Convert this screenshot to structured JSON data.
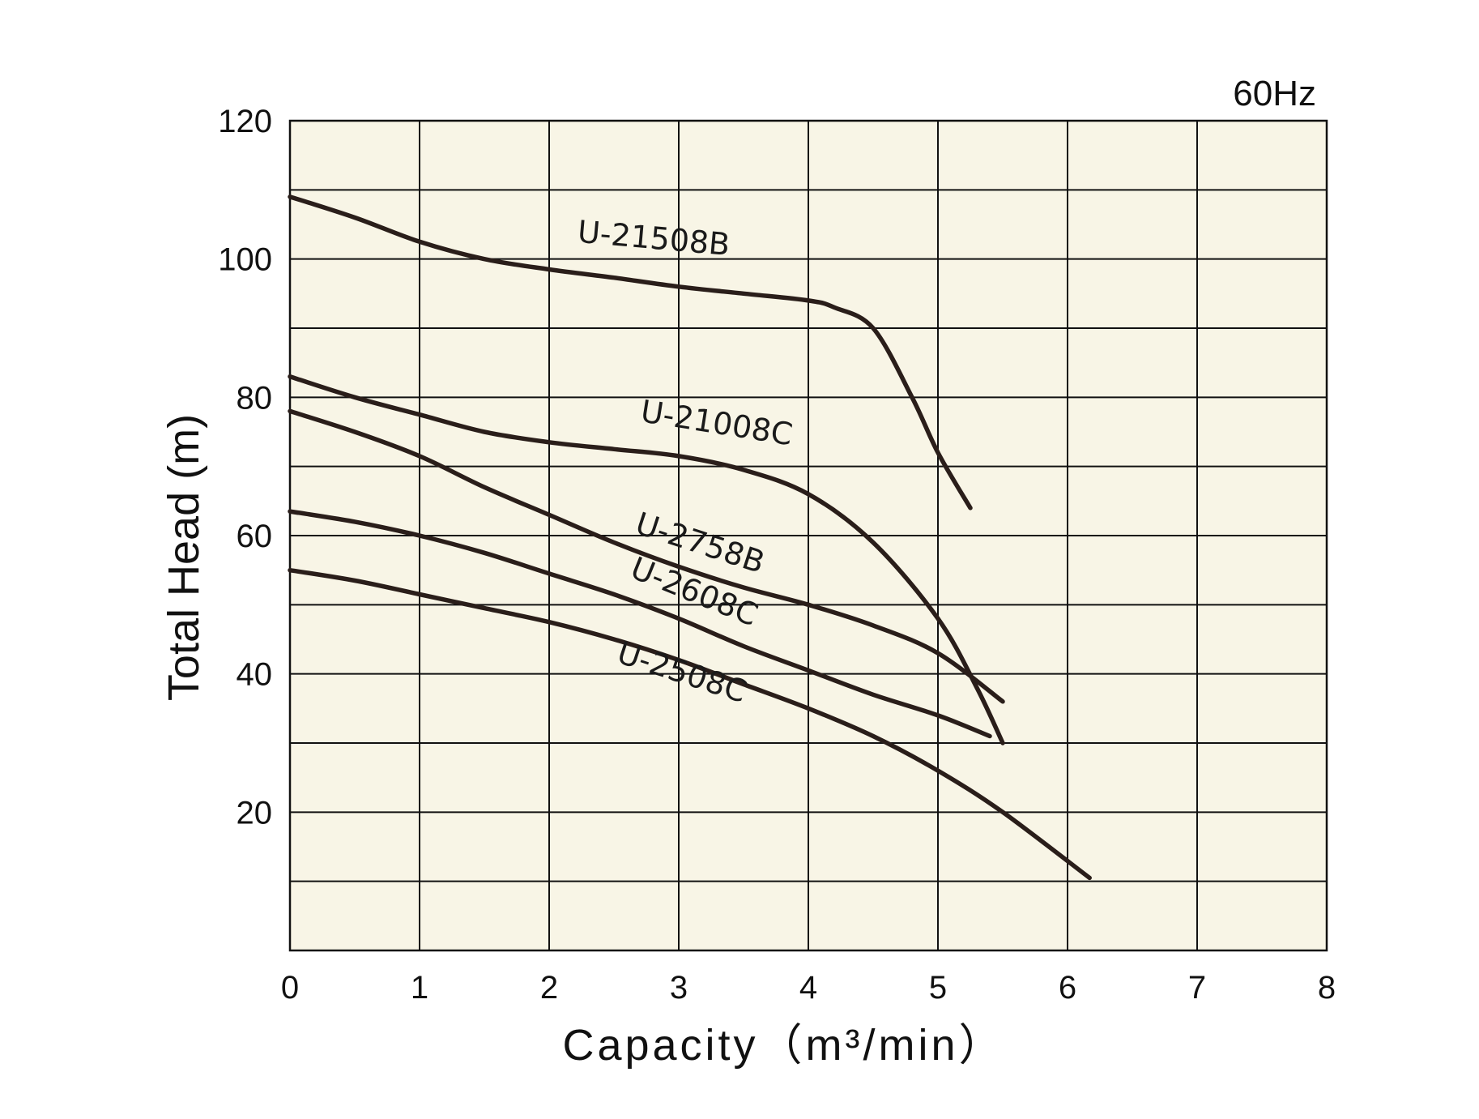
{
  "chart_data": {
    "type": "line",
    "frequency_label": "60Hz",
    "xlabel": "Capacity（m³/min）",
    "ylabel": "Total Head (m)",
    "xlim": [
      0,
      8
    ],
    "ylim": [
      0,
      120
    ],
    "x_ticks": [
      0,
      1,
      2,
      3,
      4,
      5,
      6,
      7,
      8
    ],
    "y_tick_labels": [
      20,
      40,
      60,
      80,
      100,
      120
    ],
    "y_grid_step": 10,
    "grid": true,
    "background_color": "#f8f5e6",
    "line_color": "#2a1e1a",
    "series": [
      {
        "name": "U-21508B",
        "points": [
          [
            0,
            109
          ],
          [
            0.5,
            106
          ],
          [
            1,
            102.5
          ],
          [
            1.5,
            100
          ],
          [
            2,
            98.5
          ],
          [
            2.5,
            97.3
          ],
          [
            3,
            96
          ],
          [
            3.5,
            95
          ],
          [
            4,
            94
          ],
          [
            4.2,
            93
          ],
          [
            4.5,
            90
          ],
          [
            4.8,
            80
          ],
          [
            5,
            72
          ],
          [
            5.25,
            64
          ]
        ]
      },
      {
        "name": "U-21008C",
        "points": [
          [
            0,
            83
          ],
          [
            0.5,
            80
          ],
          [
            1,
            77.5
          ],
          [
            1.5,
            75
          ],
          [
            2,
            73.5
          ],
          [
            2.5,
            72.5
          ],
          [
            3,
            71.5
          ],
          [
            3.5,
            69.5
          ],
          [
            4,
            66
          ],
          [
            4.5,
            59
          ],
          [
            5,
            48
          ],
          [
            5.3,
            38
          ],
          [
            5.5,
            30
          ]
        ]
      },
      {
        "name": "U-2758B",
        "points": [
          [
            0,
            78
          ],
          [
            0.5,
            75
          ],
          [
            1,
            71.5
          ],
          [
            1.5,
            67
          ],
          [
            2,
            63
          ],
          [
            2.5,
            59
          ],
          [
            3,
            55.5
          ],
          [
            3.5,
            52.5
          ],
          [
            4,
            50
          ],
          [
            4.5,
            47
          ],
          [
            5,
            43
          ],
          [
            5.5,
            36
          ]
        ]
      },
      {
        "name": "U-2608C",
        "points": [
          [
            0,
            63.5
          ],
          [
            0.5,
            62
          ],
          [
            1,
            60
          ],
          [
            1.5,
            57.5
          ],
          [
            2,
            54.5
          ],
          [
            2.5,
            51.5
          ],
          [
            3,
            48
          ],
          [
            3.5,
            44
          ],
          [
            4,
            40.5
          ],
          [
            4.5,
            37
          ],
          [
            5,
            34
          ],
          [
            5.4,
            31
          ]
        ]
      },
      {
        "name": "U-2508C",
        "points": [
          [
            0,
            55
          ],
          [
            0.5,
            53.5
          ],
          [
            1,
            51.5
          ],
          [
            1.5,
            49.5
          ],
          [
            2,
            47.5
          ],
          [
            2.5,
            45
          ],
          [
            3,
            42
          ],
          [
            3.5,
            38.5
          ],
          [
            4,
            35
          ],
          [
            4.5,
            31
          ],
          [
            5,
            26
          ],
          [
            5.5,
            20
          ],
          [
            6.17,
            10.5
          ]
        ]
      }
    ]
  }
}
